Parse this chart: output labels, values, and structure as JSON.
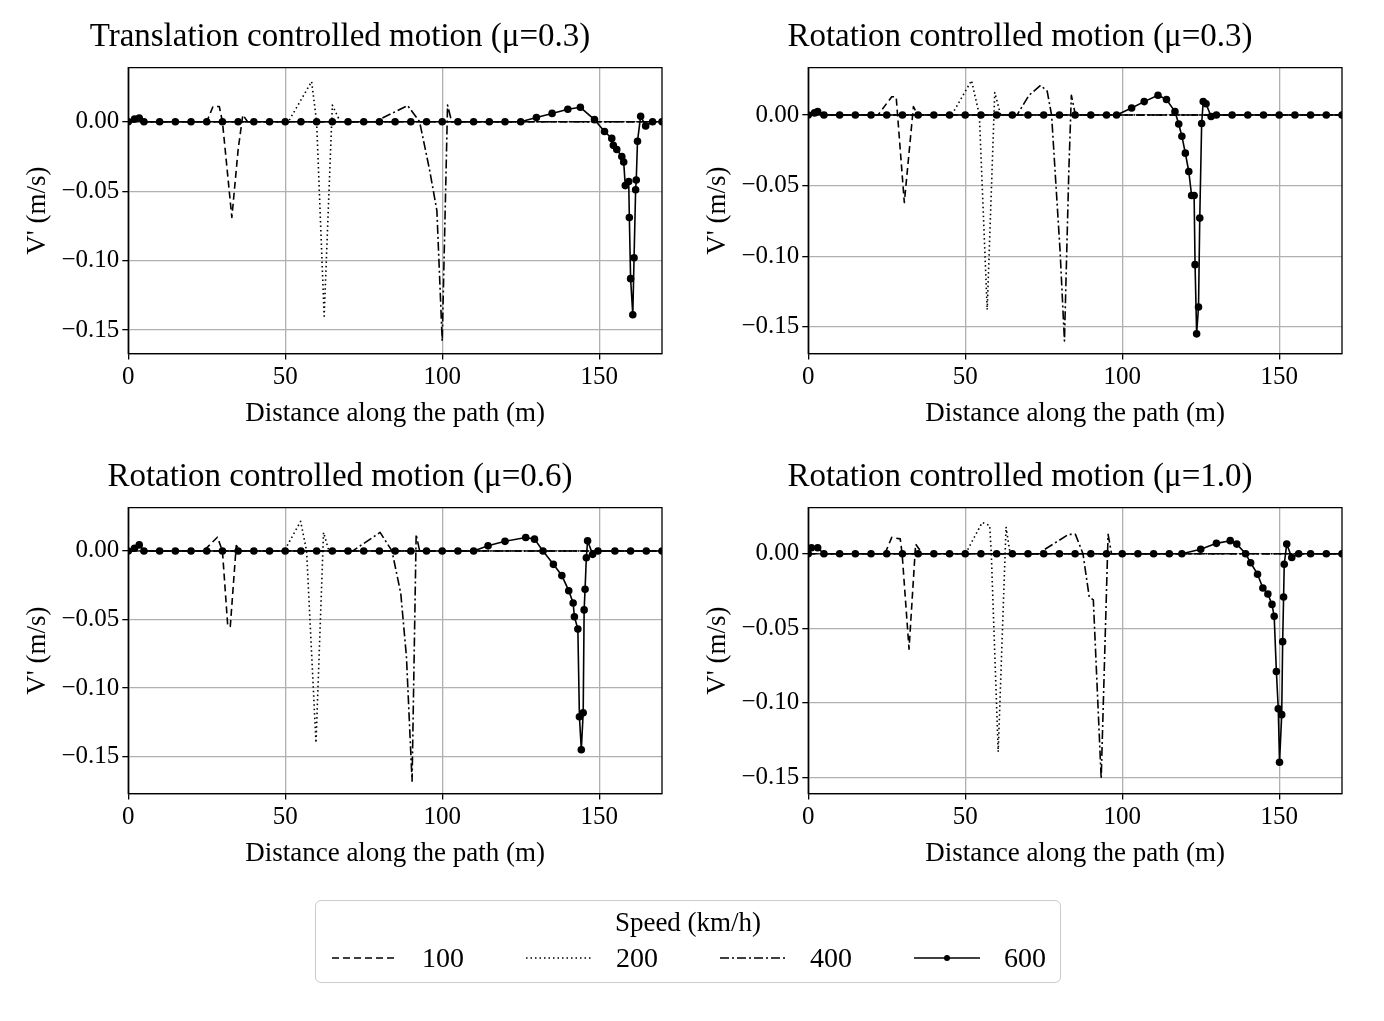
{
  "chart_data": [
    {
      "type": "line",
      "title": "Translation controlled motion (μ=0.3)",
      "xlabel": "Distance along the path (m)",
      "ylabel": "V' (m/s)",
      "xlim": [
        0,
        170
      ],
      "ylim": [
        -0.167,
        0.039
      ],
      "xticks": [
        0,
        50,
        100,
        150
      ],
      "yticks": [
        {
          "value": 0,
          "label": "0.00"
        },
        {
          "value": -0.05,
          "label": "−0.05"
        },
        {
          "value": -0.1,
          "label": "−0.10"
        },
        {
          "value": -0.15,
          "label": "−0.15"
        }
      ],
      "grid": true,
      "legend": "bottom",
      "legend_title": "Speed (km/h)",
      "series": [
        {
          "name": "100",
          "color": "#000000",
          "line_style": "dashed",
          "marker": "none",
          "x": [
            0,
            25,
            27,
            29,
            30,
            33,
            35,
            36.5,
            38,
            170
          ],
          "values": [
            0,
            0,
            0.011,
            0.011,
            0,
            -0.069,
            -0.02,
            0.005,
            0,
            0
          ]
        },
        {
          "name": "200",
          "color": "#000000",
          "line_style": "dotted",
          "marker": "none",
          "x": [
            0,
            51,
            58.4,
            60,
            62.4,
            65,
            67.5,
            170
          ],
          "values": [
            0,
            0,
            0.029,
            0,
            -0.14,
            0.012,
            0,
            0
          ]
        },
        {
          "name": "400",
          "color": "#000000",
          "line_style": "dashdot",
          "marker": "none",
          "x": [
            0,
            78.5,
            89,
            92.8,
            96,
            98.3,
            100,
            101.7,
            103,
            170
          ],
          "values": [
            0,
            0,
            0.0116,
            0,
            -0.035,
            -0.064,
            -0.158,
            0.012,
            0,
            0
          ]
        },
        {
          "name": "600",
          "color": "#000000",
          "line_style": "solid",
          "marker": "circle",
          "x": [
            0,
            2,
            3.5,
            5,
            10,
            15,
            20,
            25,
            30,
            35,
            40,
            45,
            50,
            55,
            60,
            65,
            70,
            75,
            80,
            85,
            90,
            95,
            100,
            105,
            110,
            115,
            120,
            125,
            130,
            135,
            140,
            144,
            148.5,
            151.7,
            154,
            154.5,
            155.6,
            157.2,
            157.8,
            158.3,
            159.4,
            159.6,
            160,
            160.7,
            161.1,
            161.6,
            161.8,
            162.2,
            163.2,
            164.8,
            167,
            170
          ],
          "values": [
            0,
            0.002,
            0.0027,
            0,
            0,
            0,
            0,
            0,
            0,
            0,
            0,
            0,
            0,
            0,
            0,
            0,
            0,
            0,
            0,
            0,
            0,
            0,
            0,
            0,
            0,
            0,
            0,
            0,
            0.003,
            0.006,
            0.009,
            0.0104,
            0.0015,
            -0.007,
            -0.012,
            -0.017,
            -0.02,
            -0.025,
            -0.029,
            -0.046,
            -0.043,
            -0.069,
            -0.113,
            -0.139,
            -0.098,
            -0.049,
            -0.042,
            -0.014,
            0.004,
            -0.003,
            0,
            0
          ]
        }
      ]
    },
    {
      "type": "line",
      "title": "Rotation controlled motion (μ=0.3)",
      "xlabel": "Distance along the path (m)",
      "ylabel": "V' (m/s)",
      "xlim": [
        0,
        170
      ],
      "ylim": [
        -0.169,
        0.0336
      ],
      "xticks": [
        0,
        50,
        100,
        150
      ],
      "yticks": [
        {
          "value": 0,
          "label": "0.00"
        },
        {
          "value": -0.05,
          "label": "−0.05"
        },
        {
          "value": -0.1,
          "label": "−0.10"
        },
        {
          "value": -0.15,
          "label": "−0.15"
        }
      ],
      "grid": true,
      "series": [
        {
          "name": "100",
          "color": "#000000",
          "line_style": "dashed",
          "marker": "none",
          "x": [
            0,
            22.2,
            26.6,
            28,
            30.6,
            33.5,
            34.8,
            170
          ],
          "values": [
            0,
            0,
            0.013,
            0.013,
            -0.062,
            0.006,
            0,
            0
          ]
        },
        {
          "name": "200",
          "color": "#000000",
          "line_style": "dotted",
          "marker": "none",
          "x": [
            0,
            45.7,
            52,
            54.5,
            57,
            59.4,
            61.3,
            170
          ],
          "values": [
            0,
            0,
            0.0245,
            0,
            -0.138,
            0.016,
            0,
            0
          ]
        },
        {
          "name": "400",
          "color": "#000000",
          "line_style": "dashdot",
          "marker": "none",
          "x": [
            0,
            66.5,
            70.3,
            74,
            76.1,
            77.5,
            80.2,
            81.6,
            83,
            83.8,
            85.1,
            170
          ],
          "values": [
            0,
            0,
            0.014,
            0.021,
            0.017,
            0,
            -0.096,
            -0.16,
            -0.039,
            0.014,
            0,
            0
          ]
        },
        {
          "name": "600",
          "color": "#000000",
          "line_style": "solid",
          "marker": "circle",
          "x": [
            0,
            2,
            3,
            5,
            10,
            15,
            20,
            25,
            30,
            35,
            40,
            45,
            50,
            55,
            60,
            65,
            70,
            75,
            80,
            85,
            90,
            95,
            98.2,
            103,
            107,
            111.4,
            114.1,
            116.8,
            118,
            119,
            120.1,
            121.2,
            122.1,
            122.9,
            123.2,
            123.7,
            124.3,
            124.7,
            125.3,
            125.8,
            126.7,
            128.3,
            130,
            135,
            140,
            145,
            150,
            155,
            160,
            165,
            170
          ],
          "values": [
            0,
            0.0015,
            0.0024,
            0,
            0,
            0,
            0,
            0,
            0,
            0,
            0,
            0,
            0,
            0,
            0,
            0,
            0,
            0,
            0,
            0,
            0,
            0,
            0,
            0.005,
            0.0095,
            0.014,
            0.011,
            0.0024,
            -0.0064,
            -0.015,
            -0.027,
            -0.04,
            -0.057,
            -0.057,
            -0.106,
            -0.155,
            -0.136,
            -0.073,
            -0.006,
            0.0095,
            0.008,
            -0.001,
            0,
            0,
            0,
            0,
            0,
            0,
            0,
            0,
            0
          ]
        }
      ]
    },
    {
      "type": "line",
      "title": "Rotation controlled motion (μ=0.6)",
      "xlabel": "Distance along the path (m)",
      "ylabel": "V' (m/s)",
      "xlim": [
        0,
        170
      ],
      "ylim": [
        -0.177,
        0.0316
      ],
      "xticks": [
        0,
        50,
        100,
        150
      ],
      "yticks": [
        {
          "value": 0,
          "label": "0.00"
        },
        {
          "value": -0.05,
          "label": "−0.05"
        },
        {
          "value": -0.1,
          "label": "−0.10"
        },
        {
          "value": -0.15,
          "label": "−0.15"
        }
      ],
      "grid": true,
      "series": [
        {
          "name": "100",
          "color": "#000000",
          "line_style": "dashed",
          "marker": "none",
          "x": [
            0,
            24,
            28.4,
            30,
            31.7,
            32.5,
            34.4,
            36,
            170
          ],
          "values": [
            0,
            0,
            0.01,
            0,
            -0.055,
            -0.055,
            0.004,
            0,
            0
          ]
        },
        {
          "name": "200",
          "color": "#000000",
          "line_style": "dotted",
          "marker": "none",
          "x": [
            0,
            49.7,
            54.9,
            56.8,
            59.8,
            62.2,
            63.9,
            170
          ],
          "values": [
            0,
            0,
            0.0216,
            0,
            -0.14,
            0.0135,
            0,
            0
          ]
        },
        {
          "name": "400",
          "color": "#000000",
          "line_style": "dashdot",
          "marker": "none",
          "x": [
            0,
            71.5,
            80.2,
            84,
            86.8,
            88.6,
            90.4,
            91.7,
            92.8,
            170
          ],
          "values": [
            0,
            0,
            0.0135,
            0,
            -0.031,
            -0.077,
            -0.168,
            0.012,
            0,
            0
          ]
        },
        {
          "name": "600",
          "color": "#000000",
          "line_style": "solid",
          "marker": "circle",
          "x": [
            0,
            2,
            3.5,
            5,
            10,
            15,
            20,
            25,
            30,
            35,
            40,
            45,
            50,
            55,
            60,
            65,
            70,
            75,
            80,
            85,
            90,
            95,
            100,
            105,
            110,
            114.6,
            120,
            126.6,
            129.4,
            132.1,
            135.4,
            138.1,
            140.3,
            141.7,
            142.1,
            143.2,
            143.7,
            144.3,
            144.9,
            145.2,
            145.5,
            145.9,
            146.3,
            147.9,
            149.6,
            155,
            160,
            165,
            170
          ],
          "values": [
            0,
            0.002,
            0.0044,
            0,
            0,
            0,
            0,
            0,
            0,
            0,
            0,
            0,
            0,
            0,
            0,
            0,
            0,
            0,
            0,
            0,
            0,
            0,
            0,
            0,
            0,
            0.0037,
            0.007,
            0.0098,
            0.0086,
            0,
            -0.0098,
            -0.018,
            -0.029,
            -0.038,
            -0.048,
            -0.057,
            -0.121,
            -0.145,
            -0.118,
            -0.043,
            -0.028,
            -0.005,
            0.0074,
            -0.0025,
            0,
            0,
            0,
            0,
            0
          ]
        }
      ]
    },
    {
      "type": "line",
      "title": "Rotation controlled motion (μ=1.0)",
      "xlabel": "Distance along the path (m)",
      "ylabel": "V' (m/s)",
      "xlim": [
        0,
        170
      ],
      "ylim": [
        -0.161,
        0.031
      ],
      "xticks": [
        0,
        50,
        100,
        150
      ],
      "yticks": [
        {
          "value": 0,
          "label": "0.00"
        },
        {
          "value": -0.05,
          "label": "−0.05"
        },
        {
          "value": -0.1,
          "label": "−0.10"
        },
        {
          "value": -0.15,
          "label": "−0.15"
        }
      ],
      "grid": true,
      "series": [
        {
          "name": "100",
          "color": "#000000",
          "line_style": "dashed",
          "marker": "none",
          "x": [
            0,
            24.4,
            26.6,
            29.3,
            29.9,
            32.1,
            34.2,
            36.4,
            170
          ],
          "values": [
            0,
            0,
            0.011,
            0.01,
            0,
            -0.064,
            0.0065,
            0,
            0
          ]
        },
        {
          "name": "200",
          "color": "#000000",
          "line_style": "dotted",
          "marker": "none",
          "x": [
            0,
            50.1,
            55.4,
            57.8,
            58.3,
            60.5,
            63,
            64.3,
            170
          ],
          "values": [
            0,
            0,
            0.021,
            0.019,
            0,
            -0.133,
            0.018,
            0,
            0
          ]
        },
        {
          "name": "400",
          "color": "#000000",
          "line_style": "dashdot",
          "marker": "none",
          "x": [
            0,
            73.1,
            82.9,
            85.1,
            87.5,
            89.5,
            90.8,
            93.3,
            95.5,
            96.6,
            170
          ],
          "values": [
            0,
            0,
            0.013,
            0.013,
            0,
            -0.029,
            -0.031,
            -0.151,
            0.013,
            0,
            0
          ]
        },
        {
          "name": "600",
          "color": "#000000",
          "line_style": "solid",
          "marker": "circle",
          "x": [
            0,
            1,
            3,
            5,
            10,
            15,
            20,
            25,
            30,
            35,
            40,
            45,
            50,
            55,
            60,
            65,
            70,
            75,
            80,
            85,
            90,
            95,
            100,
            105,
            110,
            115,
            119,
            125,
            130,
            134.4,
            136.5,
            139.3,
            140.9,
            143.1,
            144.8,
            146.4,
            147.7,
            148.4,
            149.1,
            149.7,
            150.1,
            150.8,
            151.1,
            151.4,
            151.6,
            152.4,
            154,
            156.2,
            160,
            165,
            170
          ],
          "values": [
            0,
            0.004,
            0.004,
            0,
            0,
            0,
            0,
            0,
            0,
            0,
            0,
            0,
            0,
            0,
            0,
            0,
            0,
            0,
            0,
            0,
            0,
            0,
            0,
            0,
            0,
            0,
            0,
            0.003,
            0.007,
            0.0088,
            0.0065,
            0,
            -0.006,
            -0.0137,
            -0.023,
            -0.027,
            -0.034,
            -0.042,
            -0.079,
            -0.104,
            -0.14,
            -0.108,
            -0.059,
            -0.029,
            -0.007,
            0.0065,
            -0.0025,
            0,
            0,
            0,
            0
          ]
        }
      ]
    }
  ]
}
